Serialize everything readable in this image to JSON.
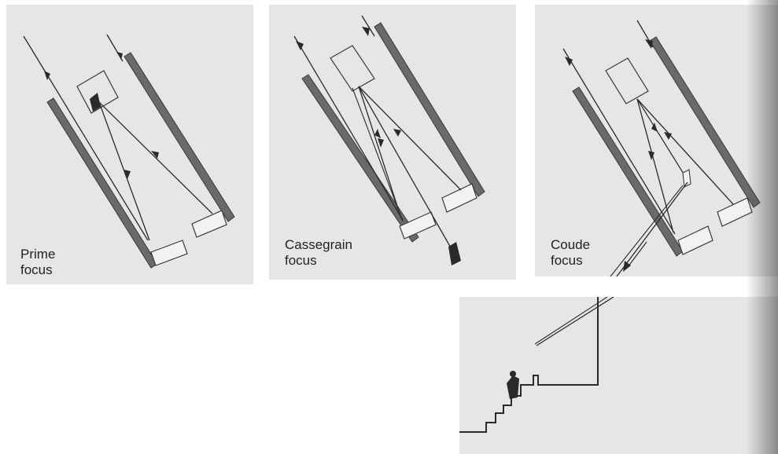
{
  "figure": {
    "colors": {
      "background": "#e6e6e6",
      "tube": "#6a6a6a",
      "ray": "#2a2a2a",
      "mirror": "#f2f2f2"
    },
    "panels": [
      {
        "id": "prime",
        "label": "Prime\nfocus"
      },
      {
        "id": "cassegrain",
        "label": "Cassegrain\nfocus"
      },
      {
        "id": "coude",
        "label": "Coude\nfocus"
      }
    ]
  }
}
